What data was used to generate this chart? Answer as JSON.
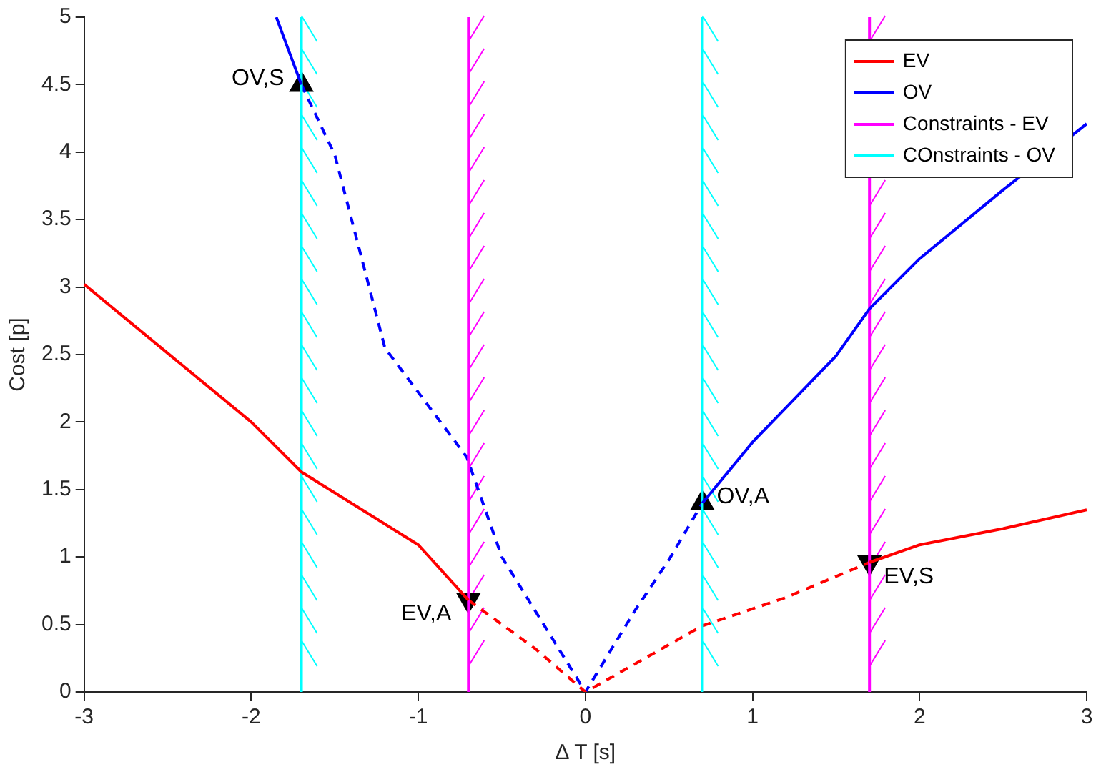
{
  "chart_data": {
    "type": "line",
    "xlabel": "Δ T [s]",
    "ylabel": "Cost [p]",
    "xlim": [
      -3,
      3
    ],
    "xticks": [
      -3,
      -2,
      -1,
      0,
      1,
      2,
      3
    ],
    "ylim": [
      0,
      5
    ],
    "yticks": [
      0,
      0.5,
      1,
      1.5,
      2,
      2.5,
      3,
      3.5,
      4,
      4.5,
      5
    ],
    "grid": false,
    "legend": "top right",
    "series": [
      {
        "name": "EV",
        "color": "#ff0000",
        "line_style": "solid",
        "marker": "none",
        "x": [
          -3,
          -2.5,
          -2,
          -1.7,
          -1,
          -0.7,
          null,
          1.7,
          2,
          2.5,
          3
        ],
        "values": [
          3.02,
          2.51,
          2.0,
          1.63,
          1.09,
          0.68,
          null,
          0.96,
          1.09,
          1.21,
          1.35
        ]
      },
      {
        "name": "OV",
        "color": "#0000ff",
        "line_style": "solid",
        "marker": "none",
        "x": [
          -1.85,
          -1.7,
          null,
          0.7,
          1,
          1.5,
          1.7,
          2,
          2.5,
          3
        ],
        "values": [
          5,
          4.5,
          null,
          1.4,
          1.85,
          2.49,
          2.84,
          3.21,
          3.72,
          4.21
        ]
      },
      {
        "name": "Constraints - EV",
        "color": "#ff00ff",
        "line_style": "solid",
        "marker": "none",
        "x": [
          -0.7,
          -0.7,
          null,
          1.7,
          1.7
        ],
        "values": [
          0,
          5,
          null,
          0,
          5
        ]
      },
      {
        "name": "COnstraints - OV",
        "color": "#00ffff",
        "line_style": "solid",
        "marker": "none",
        "x": [
          -1.7,
          -1.7,
          null,
          0.7,
          0.7
        ],
        "values": [
          0,
          5,
          null,
          0,
          5
        ]
      },
      {
        "color": "#ff0000",
        "line_style": "dashed",
        "marker": "none",
        "x": [
          -0.7,
          -0.3,
          0,
          0.5,
          0.7,
          1.2,
          1.7
        ],
        "values": [
          0.68,
          0.32,
          0,
          0.35,
          0.49,
          0.7,
          0.96
        ]
      },
      {
        "color": "#0000ff",
        "line_style": "dashed",
        "marker": "none",
        "x": [
          -1.7,
          -1.5,
          -1.2,
          -0.71,
          -0.5,
          -0.3,
          0,
          0.3,
          0.5,
          0.7
        ],
        "values": [
          4.5,
          3.98,
          2.55,
          1.74,
          1.0,
          0.6,
          0,
          0.61,
          0.98,
          1.4
        ]
      },
      {
        "color": "#000000",
        "type": "scatter",
        "marker": "triangle",
        "x": [
          -1.7,
          0.7
        ],
        "values": [
          4.5,
          1.4
        ]
      },
      {
        "color": "#000000",
        "type": "scatter",
        "marker": "triangle-down",
        "x": [
          -0.7,
          1.7
        ],
        "values": [
          0.68,
          0.96
        ]
      }
    ],
    "annotations": [
      {
        "text": "OV,S",
        "x": -1.7,
        "y": 4.5
      },
      {
        "text": "OV,A",
        "x": 0.7,
        "y": 1.4
      },
      {
        "text": "EV,A",
        "x": -0.7,
        "y": 0.68
      },
      {
        "text": "EV,S",
        "x": 1.7,
        "y": 0.96
      }
    ]
  }
}
